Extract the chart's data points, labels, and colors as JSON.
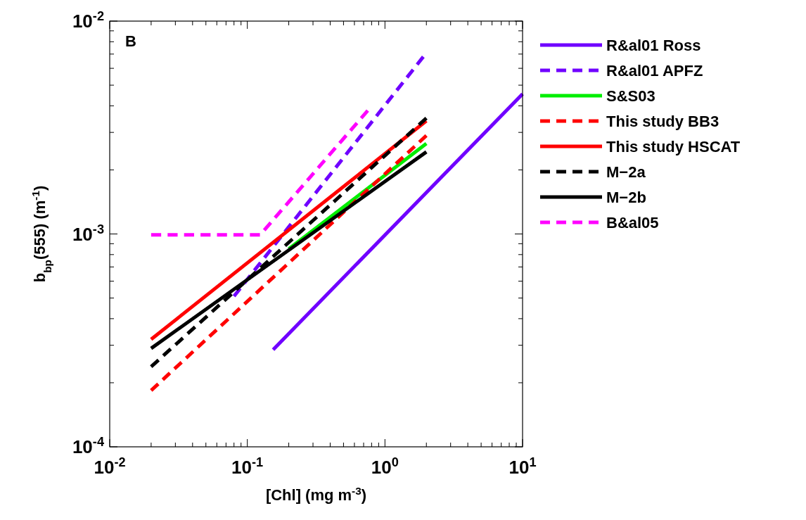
{
  "chart_data": {
    "type": "line",
    "xlabel": "[Chl] (mg m$^{-3}$)",
    "ylabel": "b$_{bp}$(555) (m$^{-1}$)",
    "log": "xy",
    "grid": false,
    "legend": "right",
    "annotations": [
      "B"
    ],
    "xlim": [
      0.01,
      10
    ],
    "ylim": [
      0.0001,
      0.01
    ],
    "xticks": [
      {
        "value": 0.01,
        "label": "10$^{-2}$"
      },
      {
        "value": 0.1,
        "label": "10$^{-1}$"
      },
      {
        "value": 1,
        "label": "10$^{0}$"
      },
      {
        "value": 10,
        "label": "10$^{1}$"
      }
    ],
    "yticks": [
      {
        "value": 0.0001,
        "label": "10$^{-4}$"
      },
      {
        "value": 0.001,
        "label": "10$^{-3}$"
      },
      {
        "value": 0.01,
        "label": "10$^{-2}$"
      }
    ],
    "series": [
      {
        "name": "R&al01 Ross",
        "color": "#7000ff",
        "line_style": "solid",
        "x": [
          0.154,
          10
        ],
        "values": [
          0.000286,
          0.00455
        ]
      },
      {
        "name": "R&al01 APFZ",
        "color": "#7000ff",
        "line_style": "dashed",
        "x": [
          0.08,
          1.9
        ],
        "values": [
          0.00051,
          0.0068
        ]
      },
      {
        "name": "S&S03",
        "color": "#00ee00",
        "line_style": "solid",
        "x": [
          0.2,
          2
        ],
        "values": [
          0.00085,
          0.00266
        ]
      },
      {
        "name": "This study BB3",
        "color": "#ff0000",
        "line_style": "dashed",
        "x": [
          0.02,
          2
        ],
        "values": [
          0.000184,
          0.0029
        ]
      },
      {
        "name": "This study HSCAT",
        "color": "#ff0000",
        "line_style": "solid",
        "x": [
          0.02,
          2
        ],
        "values": [
          0.00032,
          0.0034
        ]
      },
      {
        "name": "M−2a",
        "color": "#000000",
        "line_style": "dashed",
        "x": [
          0.02,
          2
        ],
        "values": [
          0.000238,
          0.0035
        ]
      },
      {
        "name": "M−2b",
        "color": "#000000",
        "line_style": "solid",
        "x": [
          0.02,
          2
        ],
        "values": [
          0.00029,
          0.00243
        ]
      },
      {
        "name": "B&al05",
        "color": "#ff00ff",
        "line_style": "dashed",
        "x": [
          0.02,
          0.124,
          0.75
        ],
        "values": [
          0.00099,
          0.00099,
          0.0038
        ]
      }
    ]
  }
}
